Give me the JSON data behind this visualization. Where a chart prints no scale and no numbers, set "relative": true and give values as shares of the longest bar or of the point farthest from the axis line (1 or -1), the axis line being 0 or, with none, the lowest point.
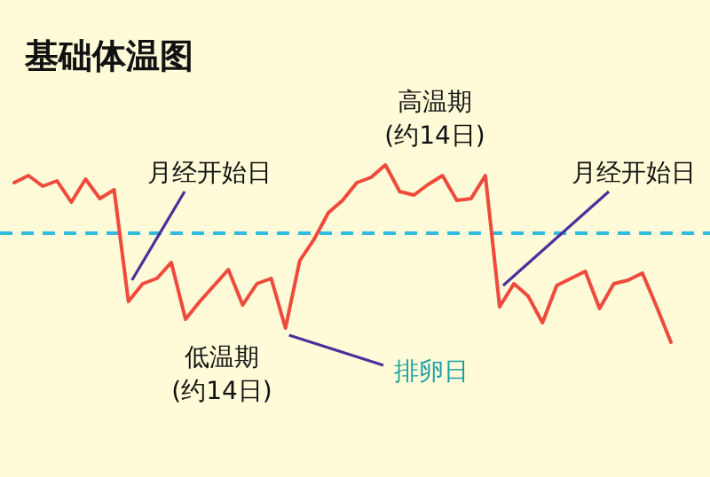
{
  "chart_data": {
    "type": "line",
    "title": "基础体温图",
    "relative": true,
    "marker": "none",
    "categories": [
      null,
      null,
      null,
      null,
      null,
      null,
      null,
      null,
      null,
      null,
      null,
      null,
      null,
      null,
      null,
      null,
      null,
      null,
      null,
      null,
      null,
      null,
      null,
      null,
      null,
      null,
      null,
      null,
      null,
      null,
      null,
      null,
      null,
      null,
      null,
      null,
      null,
      null,
      null,
      null,
      null,
      null,
      null,
      null,
      null,
      null,
      null
    ],
    "series": [
      {
        "color": "#f04a3c",
        "values": [
          0.9,
          0.94,
          0.88,
          0.91,
          0.79,
          0.92,
          0.81,
          0.86,
          0.23,
          0.33,
          0.36,
          0.45,
          0.13,
          0.23,
          0.32,
          0.41,
          0.21,
          0.33,
          0.36,
          0.08,
          0.46,
          0.58,
          0.73,
          0.8,
          0.9,
          0.93,
          1,
          0.85,
          0.83,
          0.89,
          0.94,
          0.8,
          0.81,
          0.94,
          0.2,
          0.33,
          0.26,
          0.11,
          0.32,
          0.36,
          0.4,
          0.19,
          0.33,
          0.35,
          0.39,
          0.2,
          0
        ]
      }
    ],
    "ref_lines": [
      {
        "axis": "y",
        "value": 0.615,
        "color": "#33bbdd",
        "line_style": "dashed"
      }
    ],
    "annotations": [
      "月经开始日",
      "低温期\n(约14日)",
      "排卵日",
      "高温期\n(约14日)",
      "月经开始日"
    ]
  }
}
